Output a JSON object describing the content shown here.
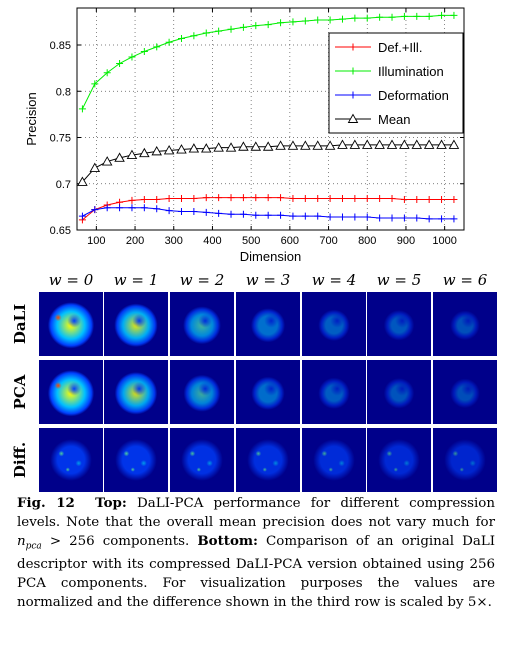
{
  "chart_data": {
    "type": "line",
    "xlabel": "Dimension",
    "ylabel": "Precision",
    "xlim": [
      50,
      1050
    ],
    "ylim": [
      0.65,
      0.89
    ],
    "xticks": [
      100,
      200,
      300,
      400,
      500,
      600,
      700,
      800,
      900,
      1000
    ],
    "yticks": [
      0.65,
      0.7,
      0.75,
      0.8,
      0.85
    ],
    "ytick_labels": [
      "0.65",
      "0.7",
      "0.75",
      "0.8",
      "0.85"
    ],
    "grid": true,
    "legend_position": "top-right",
    "x": [
      64,
      96,
      128,
      160,
      192,
      224,
      256,
      288,
      320,
      352,
      384,
      416,
      448,
      480,
      512,
      544,
      576,
      608,
      640,
      672,
      704,
      736,
      768,
      800,
      832,
      864,
      896,
      928,
      960,
      992,
      1024
    ],
    "series": [
      {
        "name": "Def.+Ill.",
        "color": "#ff0000",
        "marker": "plus",
        "values": [
          0.661,
          0.672,
          0.677,
          0.68,
          0.682,
          0.683,
          0.683,
          0.684,
          0.684,
          0.684,
          0.685,
          0.685,
          0.685,
          0.685,
          0.685,
          0.685,
          0.685,
          0.684,
          0.684,
          0.684,
          0.684,
          0.684,
          0.684,
          0.684,
          0.684,
          0.684,
          0.683,
          0.683,
          0.683,
          0.683,
          0.683
        ]
      },
      {
        "name": "Illumination",
        "color": "#00ee00",
        "marker": "plus",
        "values": [
          0.781,
          0.808,
          0.82,
          0.83,
          0.837,
          0.843,
          0.848,
          0.853,
          0.857,
          0.86,
          0.863,
          0.865,
          0.867,
          0.869,
          0.871,
          0.872,
          0.874,
          0.875,
          0.876,
          0.877,
          0.877,
          0.878,
          0.879,
          0.879,
          0.88,
          0.88,
          0.881,
          0.881,
          0.881,
          0.882,
          0.882
        ]
      },
      {
        "name": "Deformation",
        "color": "#0000ff",
        "marker": "plus",
        "values": [
          0.665,
          0.672,
          0.674,
          0.674,
          0.674,
          0.674,
          0.673,
          0.671,
          0.67,
          0.67,
          0.669,
          0.668,
          0.667,
          0.667,
          0.666,
          0.666,
          0.666,
          0.665,
          0.665,
          0.665,
          0.664,
          0.664,
          0.664,
          0.664,
          0.663,
          0.663,
          0.663,
          0.663,
          0.662,
          0.662,
          0.662
        ]
      },
      {
        "name": "Mean",
        "color": "#000000",
        "marker": "triangle",
        "values": [
          0.702,
          0.717,
          0.724,
          0.728,
          0.731,
          0.733,
          0.735,
          0.736,
          0.737,
          0.738,
          0.738,
          0.739,
          0.739,
          0.74,
          0.74,
          0.74,
          0.741,
          0.741,
          0.741,
          0.741,
          0.741,
          0.742,
          0.742,
          0.742,
          0.742,
          0.742,
          0.742,
          0.742,
          0.742,
          0.742,
          0.742
        ]
      }
    ]
  },
  "image_grid": {
    "column_labels": [
      "w = 0",
      "w = 1",
      "w = 2",
      "w = 3",
      "w = 4",
      "w = 5",
      "w = 6"
    ],
    "row_labels": [
      "DaLI",
      "PCA",
      "Diff."
    ],
    "colormap_colors": [
      "#00008a",
      "#0040ff",
      "#00c0ff",
      "#60ffa0",
      "#ffff00",
      "#ff4000"
    ],
    "intensity": [
      [
        1.0,
        0.85,
        0.55,
        0.35,
        0.22,
        0.15,
        0.1
      ],
      [
        1.0,
        0.8,
        0.5,
        0.32,
        0.2,
        0.13,
        0.08
      ],
      [
        0.45,
        0.45,
        0.4,
        0.35,
        0.3,
        0.25,
        0.2
      ]
    ]
  },
  "caption": {
    "fig": "Fig. 12",
    "top_label": "Top:",
    "top_text": "DaLI-PCA performance for different compression levels. Note that the overall mean precision does not vary much for",
    "math": "n",
    "math_sub": "pca",
    "math_rest": "> 256 components.",
    "bottom_label": "Bottom:",
    "bottom_text": "Comparison of an original DaLI descriptor with its compressed DaLI-PCA version obtained using 256 PCA components. For visualization purposes the values are normalized and the difference shown in the third row is scaled by 5×."
  }
}
